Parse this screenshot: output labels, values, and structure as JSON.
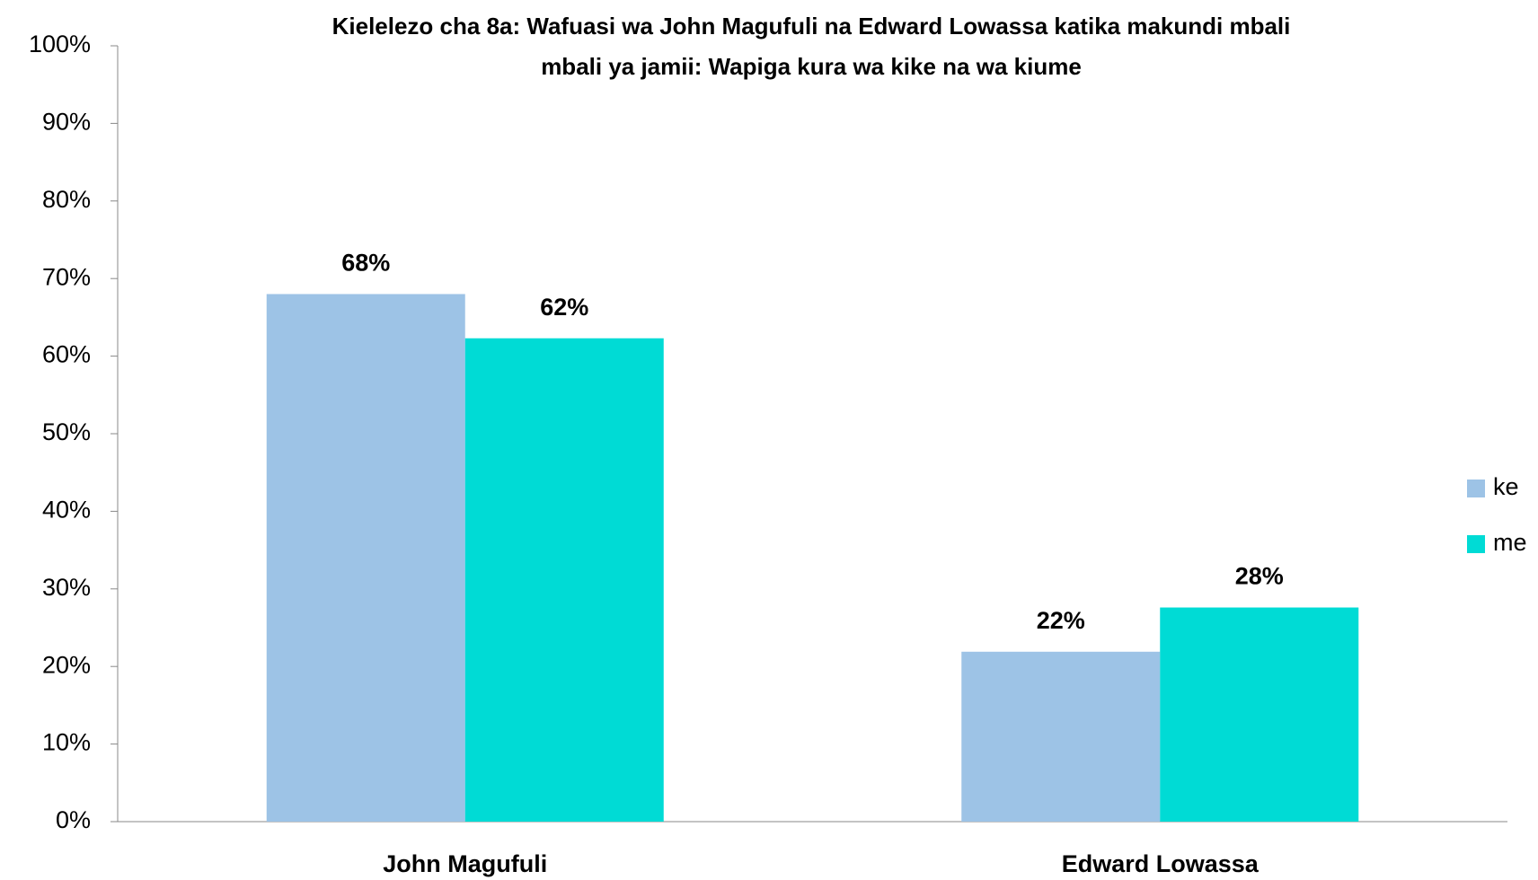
{
  "chart_data": {
    "type": "bar",
    "title": [
      "Kielelezo cha 8a: Wafuasi wa John Magufuli na Edward Lowassa katika makundi mbali",
      "mbali ya jamii: Wapiga kura wa kike na wa kiume"
    ],
    "categories": [
      "John Magufuli",
      "Edward Lowassa"
    ],
    "series": [
      {
        "name": "ke",
        "color": "#9dc3e6",
        "values": [
          68,
          21.9
        ],
        "value_labels": [
          "68%",
          "22%"
        ]
      },
      {
        "name": "me",
        "color": "#00dbd5",
        "values": [
          62.3,
          27.6
        ],
        "value_labels": [
          "62%",
          "28%"
        ]
      }
    ],
    "ylim": [
      0,
      100
    ],
    "yticks": [
      {
        "value": 0,
        "label": "0%"
      },
      {
        "value": 10,
        "label": "10%"
      },
      {
        "value": 20,
        "label": "20%"
      },
      {
        "value": 30,
        "label": "30%"
      },
      {
        "value": 40,
        "label": "40%"
      },
      {
        "value": 50,
        "label": "50%"
      },
      {
        "value": 60,
        "label": "60%"
      },
      {
        "value": 70,
        "label": "70%"
      },
      {
        "value": 80,
        "label": "80%"
      },
      {
        "value": 90,
        "label": "90%"
      },
      {
        "value": 100,
        "label": "100%"
      }
    ],
    "grid": false,
    "legend": "right"
  }
}
